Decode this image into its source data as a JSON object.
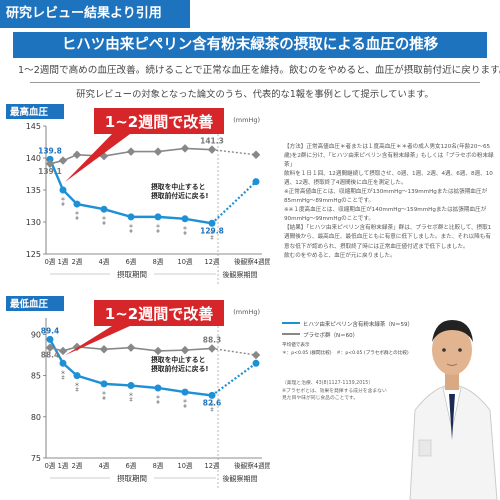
{
  "badge": "研究レビュー結果より引用",
  "title": "ヒハツ由来ピペリン含有粉末緑茶の摂取による血圧の推移",
  "line1": "1～2週間で高めの血圧改善。続けることで正常な血圧を維持。飲むのをやめると、血圧が摂取前付近に戻ります。",
  "line2": "研究レビューの対象となった論文のうち、代表的な1報を事例として提示しています。",
  "callout": "1~2週間で改善",
  "stop_note": [
    "摂取を中止すると",
    "摂取前付近に戻る!"
  ],
  "period_labels": {
    "intake": "摂取期間",
    "after": "後観察期間"
  },
  "chart_data": [
    {
      "type": "line",
      "title": "最高血圧",
      "ylabel": "(mmHg)",
      "ylim": [
        125,
        145
      ],
      "yticks": [
        125,
        130,
        135,
        140,
        145
      ],
      "x": [
        "0週",
        "1週",
        "2週",
        "4週",
        "6週",
        "8週",
        "10週",
        "12週",
        "後観察4週間後"
      ],
      "series": [
        {
          "name": "ヒハツ由来ピペリン含有粉末緑茶（N＝59）",
          "color": "#1e90d6",
          "values": [
            139.8,
            135.0,
            132.8,
            132.0,
            130.8,
            130.8,
            130.5,
            129.8,
            136.3
          ]
        },
        {
          "name": "プラセボ群（N＝60）",
          "color": "#888888",
          "values": [
            139.1,
            139.6,
            140.5,
            140.3,
            141.0,
            141.0,
            141.5,
            141.3,
            140.5
          ]
        }
      ],
      "labels": [
        {
          "i": 0,
          "s": 0,
          "text": "139.8"
        },
        {
          "i": 0,
          "s": 1,
          "text": "139.1"
        },
        {
          "i": 7,
          "s": 1,
          "text": "141.3"
        },
        {
          "i": 7,
          "s": 0,
          "text": "129.8"
        }
      ]
    },
    {
      "type": "line",
      "title": "最低血圧",
      "ylabel": "(mmHg)",
      "ylim": [
        75,
        92
      ],
      "yticks": [
        75,
        80,
        85,
        90
      ],
      "x": [
        "0週",
        "1週",
        "2週",
        "4週",
        "6週",
        "8週",
        "10週",
        "12週",
        "後観察4週間後"
      ],
      "series": [
        {
          "name": "ヒハツ由来ピペリン含有粉末緑茶（N＝59）",
          "color": "#1e90d6",
          "values": [
            89.4,
            86.5,
            85.0,
            84.0,
            83.8,
            83.5,
            83.0,
            82.6,
            86.5
          ]
        },
        {
          "name": "プラセボ群（N＝60）",
          "color": "#888888",
          "values": [
            88.4,
            88.0,
            88.5,
            88.2,
            88.4,
            88.0,
            88.1,
            88.3,
            87.5
          ]
        }
      ],
      "labels": [
        {
          "i": 0,
          "s": 0,
          "text": "89.4"
        },
        {
          "i": 0,
          "s": 1,
          "text": "88.4"
        },
        {
          "i": 7,
          "s": 1,
          "text": "88.3"
        },
        {
          "i": 7,
          "s": 0,
          "text": "82.6"
        }
      ]
    }
  ],
  "notes": [
    "【方法】正常高値血圧＊者または１度高血圧＊＊者の成人男女120名(年齢20～65歳)を2群に分け、「ヒハツ由来ピペリン含有粉末緑茶」もしくは「プラセボの粉末緑茶」",
    "飲料を１日１回、12週間継続して摂取させ、0週、1週、2週、4週、6週、8週、10週、12週、摂取終了4週間後に血圧を測定した。",
    "※正常高値血圧とは、収縮期血圧が130mmHg～139mmHgまたは拡張期血圧が85mmHg～89mmHgのことです。",
    "※※１度高血圧とは、収縮期血圧が140mmHg～159mmHgまたは拡張期血圧が90mmHg～99mmHgのことです。",
    "【結果】「ヒハツ由来ピペリン含有粉末緑茶」群は、プラセボ群と比較して、摂取1週間後から、最高血圧、最低血圧ともに有意に低下しました。また、それ以降も有意な低下が認められ、摂取終了時には正常血圧値付近まで低下しました。",
    "飲むのをやめると、血圧が元に戻りました。"
  ],
  "legend": {
    "items": [
      "ヒハツ由来ピペリン含有粉末緑茶（N＝59）",
      "プラセボ群（N＝60）"
    ],
    "small": [
      "平均値で表示",
      "＊：p<0.05 (群間比較)　＃：p<0.05 (プラセボ群との比較)"
    ]
  },
  "sources": [
    "（薬理と治療、43(8)1127-1139,2015）",
    "※プラセボとは、効果を発揮する成分を含まない",
    "見た目や味が同じ食品のことです。"
  ]
}
